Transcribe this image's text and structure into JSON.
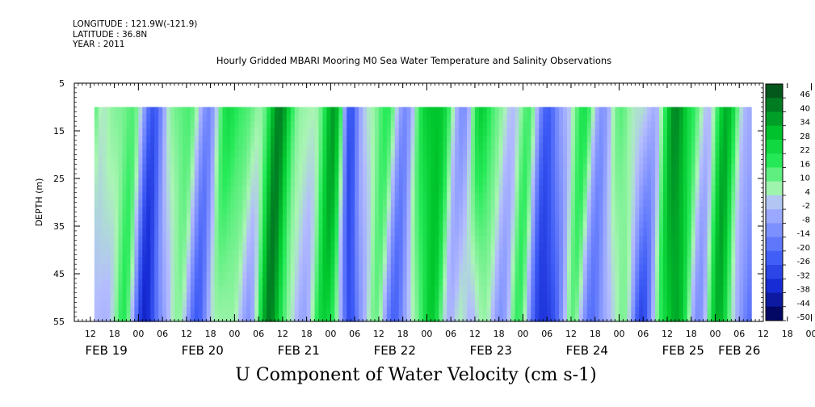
{
  "header": {
    "longitude_line": "LONGITUDE : 121.9W(-121.9)",
    "latitude_line": "LATITUDE : 36.8N",
    "year_line": "YEAR : 2011"
  },
  "chart_data": {
    "type": "heatmap",
    "title": "Hourly Gridded MBARI Mooring M0 Sea Water Temperature and Salinity Observations",
    "xlabel": "U Component of Water Velocity (cm s-1)",
    "ylabel": "DEPTH (m)",
    "ylim": [
      55,
      5
    ],
    "y_ticks": [
      5,
      15,
      25,
      35,
      45,
      55
    ],
    "x_hour_ticks": [
      "12",
      "18",
      "00",
      "06",
      "12",
      "18",
      "00",
      "06",
      "12",
      "18",
      "00",
      "06",
      "12",
      "18",
      "00",
      "06",
      "12",
      "18",
      "00",
      "06",
      "12",
      "18",
      "00",
      "06",
      "12",
      "18",
      "00",
      "06",
      "12",
      "18",
      "00",
      "06"
    ],
    "x_date_labels": [
      "FEB 19",
      "FEB 20",
      "FEB 21",
      "FEB 22",
      "FEB 23",
      "FEB 24",
      "FEB 25",
      "FEB 26"
    ],
    "data_depth_range": [
      10,
      55
    ],
    "data_time_range": [
      "2011-02-19T13:00",
      "2011-02-26T09:00"
    ],
    "colorbar": {
      "min": -50,
      "max": 50,
      "step": 6,
      "labels": [
        "46",
        "40",
        "34",
        "28",
        "22",
        "16",
        "10",
        "4",
        "-2",
        "-8",
        "-14",
        "-20",
        "-26",
        "-32",
        "-38",
        "-44",
        "-50"
      ]
    },
    "colors": {
      "strong_positive": "#0a4d1a",
      "positive": "#00d22a",
      "weak_positive": "#a6f5b0",
      "weak_negative": "#b4bcff",
      "negative": "#6f86ff",
      "strong_negative": "#000a66"
    },
    "grid": false,
    "legend": "right"
  }
}
